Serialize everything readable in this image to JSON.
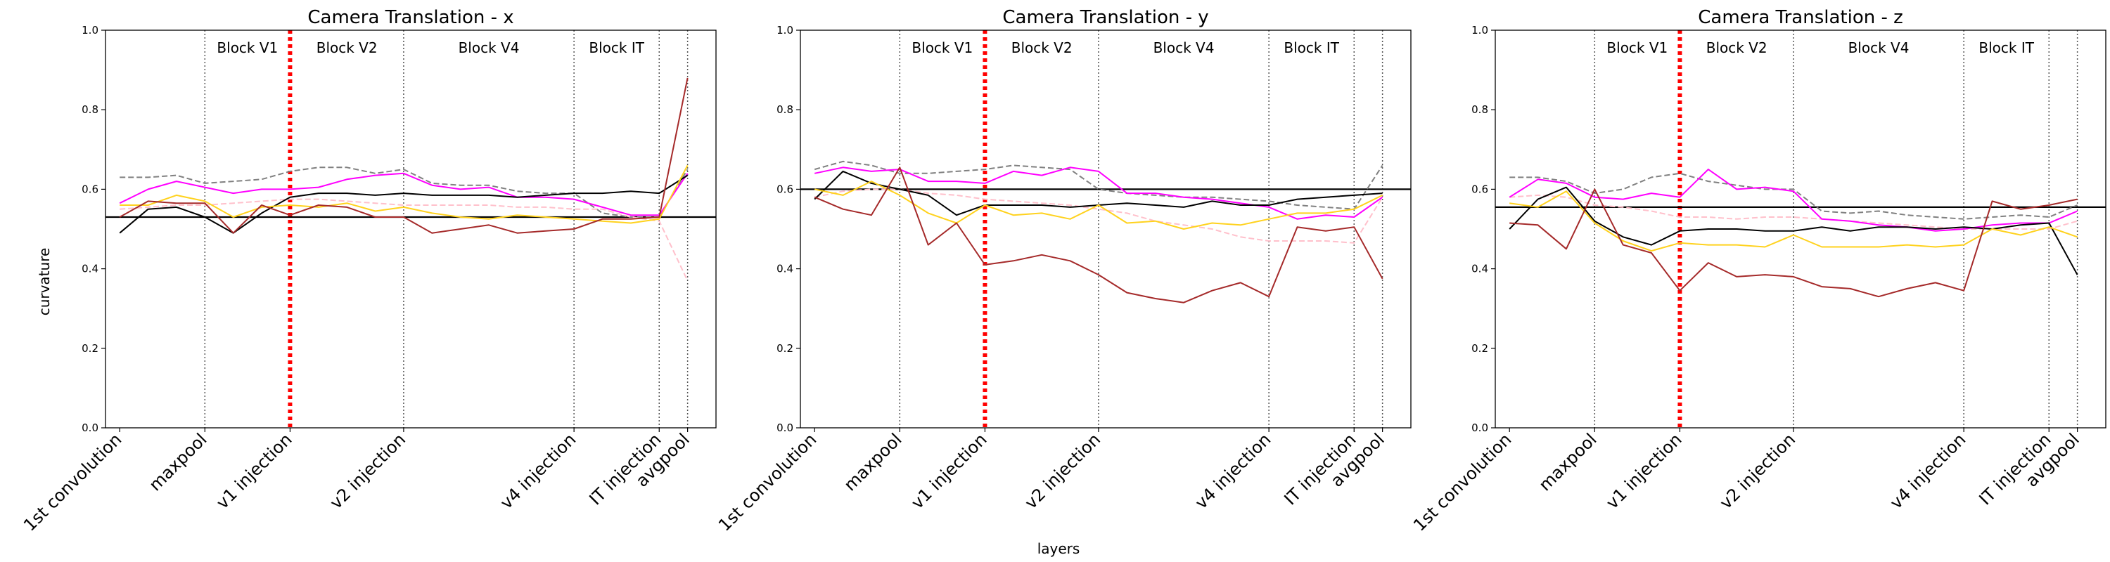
{
  "figure": {
    "shared_xlabel": "layers",
    "shared_ylabel": "curvature"
  },
  "colors": {
    "magenta": "#ff00ff",
    "black": "#000000",
    "gold": "#ffd21e",
    "darkred": "#a52a2a",
    "gray_dashed": "#808080",
    "pink_dashed": "#ffc0cb",
    "injection_line": "#ff0000",
    "divider": "#555555"
  },
  "chart_data": [
    {
      "type": "line",
      "title": "Camera Translation - x",
      "xlabel": "layers",
      "ylabel": "curvature",
      "xlim": [
        -0.5,
        21
      ],
      "ylim": [
        0,
        1
      ],
      "yticks": [
        0.0,
        0.2,
        0.4,
        0.6,
        0.8,
        1.0
      ],
      "ytick_labels": [
        "0.0",
        "0.2",
        "0.4",
        "0.6",
        "0.8",
        "1.0"
      ],
      "xticks": [
        0,
        3,
        6,
        10,
        16,
        19,
        20
      ],
      "xtick_labels": [
        "1st convolution",
        "maxpool",
        "v1 injection",
        "v2 injection",
        "v4 injection",
        "IT injection",
        "avgpool"
      ],
      "block_boundaries": [
        3,
        6,
        10,
        16,
        19,
        20
      ],
      "injection_x": 6,
      "block_labels": [
        {
          "label": "Block V1",
          "x": 4.5
        },
        {
          "label": "Block V2",
          "x": 8.0
        },
        {
          "label": "Block V4",
          "x": 13.0
        },
        {
          "label": "Block IT",
          "x": 17.5
        }
      ],
      "hlines": [
        {
          "y": 0.53,
          "color": "black"
        }
      ],
      "series": [
        {
          "color": "gray_dashed",
          "style": "dashed",
          "values": [
            0.63,
            0.63,
            0.635,
            0.615,
            0.62,
            0.625,
            0.645,
            0.655,
            0.655,
            0.64,
            0.65,
            0.615,
            0.61,
            0.61,
            0.595,
            0.59,
            0.59,
            0.54,
            0.53,
            0.53,
            0.65
          ]
        },
        {
          "color": "pink_dashed",
          "style": "dashed",
          "values": [
            0.55,
            0.555,
            0.56,
            0.56,
            0.565,
            0.57,
            0.575,
            0.575,
            0.57,
            0.565,
            0.56,
            0.56,
            0.56,
            0.56,
            0.555,
            0.555,
            0.55,
            0.55,
            0.53,
            0.52,
            0.37
          ]
        },
        {
          "color": "magenta",
          "style": "solid",
          "values": [
            0.565,
            0.6,
            0.62,
            0.605,
            0.59,
            0.6,
            0.6,
            0.605,
            0.625,
            0.635,
            0.64,
            0.61,
            0.6,
            0.605,
            0.58,
            0.58,
            0.575,
            0.555,
            0.535,
            0.535,
            0.64
          ]
        },
        {
          "color": "black",
          "style": "solid",
          "values": [
            0.49,
            0.55,
            0.555,
            0.53,
            0.49,
            0.54,
            0.58,
            0.59,
            0.59,
            0.585,
            0.59,
            0.585,
            0.585,
            0.585,
            0.58,
            0.585,
            0.59,
            0.59,
            0.595,
            0.59,
            0.635
          ]
        },
        {
          "color": "gold",
          "style": "solid",
          "values": [
            0.56,
            0.56,
            0.585,
            0.57,
            0.53,
            0.555,
            0.56,
            0.555,
            0.565,
            0.545,
            0.555,
            0.54,
            0.53,
            0.525,
            0.535,
            0.53,
            0.525,
            0.52,
            0.515,
            0.525,
            0.66
          ]
        },
        {
          "color": "darkred",
          "style": "solid",
          "values": [
            0.53,
            0.57,
            0.565,
            0.565,
            0.49,
            0.56,
            0.535,
            0.56,
            0.555,
            0.53,
            0.53,
            0.49,
            0.5,
            0.51,
            0.49,
            0.495,
            0.5,
            0.525,
            0.525,
            0.53,
            0.88
          ]
        }
      ]
    },
    {
      "type": "line",
      "title": "Camera Translation - y",
      "xlabel": "layers",
      "ylabel": "curvature",
      "xlim": [
        -0.5,
        21
      ],
      "ylim": [
        0,
        1
      ],
      "yticks": [
        0.0,
        0.2,
        0.4,
        0.6,
        0.8,
        1.0
      ],
      "ytick_labels": [
        "0.0",
        "0.2",
        "0.4",
        "0.6",
        "0.8",
        "1.0"
      ],
      "xticks": [
        0,
        3,
        6,
        10,
        16,
        19,
        20
      ],
      "xtick_labels": [
        "1st convolution",
        "maxpool",
        "v1 injection",
        "v2 injection",
        "v4 injection",
        "IT injection",
        "avgpool"
      ],
      "block_boundaries": [
        3,
        6,
        10,
        16,
        19,
        20
      ],
      "injection_x": 6,
      "block_labels": [
        {
          "label": "Block V1",
          "x": 4.5
        },
        {
          "label": "Block V2",
          "x": 8.0
        },
        {
          "label": "Block V4",
          "x": 13.0
        },
        {
          "label": "Block IT",
          "x": 17.5
        }
      ],
      "hlines": [
        {
          "y": 0.6,
          "color": "black"
        }
      ],
      "series": [
        {
          "color": "gray_dashed",
          "style": "dashed",
          "values": [
            0.65,
            0.67,
            0.66,
            0.64,
            0.64,
            0.645,
            0.65,
            0.66,
            0.655,
            0.65,
            0.6,
            0.59,
            0.585,
            0.58,
            0.58,
            0.575,
            0.57,
            0.56,
            0.555,
            0.55,
            0.66
          ]
        },
        {
          "color": "pink_dashed",
          "style": "dashed",
          "values": [
            0.58,
            0.595,
            0.6,
            0.6,
            0.59,
            0.585,
            0.575,
            0.57,
            0.565,
            0.56,
            0.55,
            0.54,
            0.52,
            0.51,
            0.5,
            0.48,
            0.47,
            0.47,
            0.47,
            0.465,
            0.58
          ]
        },
        {
          "color": "magenta",
          "style": "solid",
          "values": [
            0.64,
            0.655,
            0.645,
            0.65,
            0.62,
            0.62,
            0.615,
            0.645,
            0.635,
            0.655,
            0.645,
            0.59,
            0.59,
            0.58,
            0.575,
            0.565,
            0.555,
            0.525,
            0.535,
            0.53,
            0.58
          ]
        },
        {
          "color": "black",
          "style": "solid",
          "values": [
            0.575,
            0.645,
            0.615,
            0.6,
            0.585,
            0.535,
            0.56,
            0.56,
            0.56,
            0.555,
            0.56,
            0.565,
            0.56,
            0.555,
            0.57,
            0.56,
            0.56,
            0.575,
            0.58,
            0.585,
            0.59
          ]
        },
        {
          "color": "gold",
          "style": "solid",
          "values": [
            0.6,
            0.585,
            0.62,
            0.585,
            0.54,
            0.515,
            0.56,
            0.535,
            0.54,
            0.525,
            0.56,
            0.515,
            0.52,
            0.5,
            0.515,
            0.51,
            0.525,
            0.54,
            0.54,
            0.55,
            0.585
          ]
        },
        {
          "color": "darkred",
          "style": "solid",
          "values": [
            0.58,
            0.55,
            0.535,
            0.655,
            0.46,
            0.515,
            0.41,
            0.42,
            0.435,
            0.42,
            0.385,
            0.34,
            0.325,
            0.315,
            0.345,
            0.365,
            0.33,
            0.505,
            0.495,
            0.505,
            0.375
          ]
        }
      ]
    },
    {
      "type": "line",
      "title": "Camera Translation - z",
      "xlabel": "layers",
      "ylabel": "curvature",
      "xlim": [
        -0.5,
        21
      ],
      "ylim": [
        0,
        1
      ],
      "yticks": [
        0.0,
        0.2,
        0.4,
        0.6,
        0.8,
        1.0
      ],
      "ytick_labels": [
        "0.0",
        "0.2",
        "0.4",
        "0.6",
        "0.8",
        "1.0"
      ],
      "xticks": [
        0,
        3,
        6,
        10,
        16,
        19,
        20
      ],
      "xtick_labels": [
        "1st convolution",
        "maxpool",
        "v1 injection",
        "v2 injection",
        "v4 injection",
        "IT injection",
        "avgpool"
      ],
      "block_boundaries": [
        3,
        6,
        10,
        16,
        19,
        20
      ],
      "injection_x": 6,
      "block_labels": [
        {
          "label": "Block V1",
          "x": 4.5
        },
        {
          "label": "Block V2",
          "x": 8.0
        },
        {
          "label": "Block V4",
          "x": 13.0
        },
        {
          "label": "Block IT",
          "x": 17.5
        }
      ],
      "hlines": [
        {
          "y": 0.555,
          "color": "black"
        }
      ],
      "series": [
        {
          "color": "gray_dashed",
          "style": "dashed",
          "values": [
            0.63,
            0.63,
            0.62,
            0.59,
            0.6,
            0.63,
            0.64,
            0.62,
            0.61,
            0.6,
            0.6,
            0.545,
            0.54,
            0.545,
            0.535,
            0.53,
            0.525,
            0.53,
            0.535,
            0.53,
            0.56
          ]
        },
        {
          "color": "pink_dashed",
          "style": "dashed",
          "values": [
            0.58,
            0.585,
            0.58,
            0.56,
            0.555,
            0.545,
            0.53,
            0.53,
            0.525,
            0.53,
            0.53,
            0.525,
            0.52,
            0.515,
            0.51,
            0.505,
            0.5,
            0.5,
            0.5,
            0.5,
            0.52
          ]
        },
        {
          "color": "magenta",
          "style": "solid",
          "values": [
            0.58,
            0.625,
            0.615,
            0.58,
            0.575,
            0.59,
            0.58,
            0.65,
            0.6,
            0.605,
            0.595,
            0.525,
            0.52,
            0.51,
            0.505,
            0.495,
            0.5,
            0.51,
            0.515,
            0.515,
            0.545
          ]
        },
        {
          "color": "black",
          "style": "solid",
          "values": [
            0.5,
            0.575,
            0.605,
            0.52,
            0.48,
            0.46,
            0.495,
            0.5,
            0.5,
            0.495,
            0.495,
            0.505,
            0.495,
            0.505,
            0.505,
            0.5,
            0.505,
            0.5,
            0.51,
            0.515,
            0.385
          ]
        },
        {
          "color": "gold",
          "style": "solid",
          "values": [
            0.565,
            0.555,
            0.595,
            0.515,
            0.47,
            0.445,
            0.465,
            0.46,
            0.46,
            0.455,
            0.485,
            0.455,
            0.455,
            0.455,
            0.46,
            0.455,
            0.46,
            0.5,
            0.485,
            0.505,
            0.48
          ]
        },
        {
          "color": "darkred",
          "style": "solid",
          "values": [
            0.515,
            0.51,
            0.45,
            0.6,
            0.46,
            0.44,
            0.345,
            0.415,
            0.38,
            0.385,
            0.38,
            0.355,
            0.35,
            0.33,
            0.35,
            0.365,
            0.345,
            0.57,
            0.55,
            0.56,
            0.575
          ]
        }
      ]
    }
  ]
}
